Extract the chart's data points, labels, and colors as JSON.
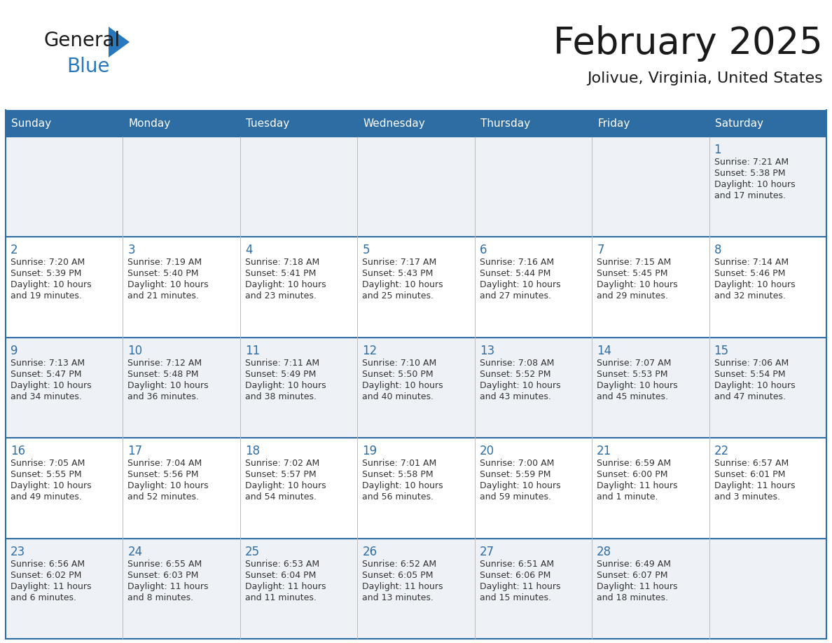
{
  "title": "February 2025",
  "subtitle": "Jolivue, Virginia, United States",
  "header_bg": "#2e6da4",
  "header_text_color": "#ffffff",
  "day_names": [
    "Sunday",
    "Monday",
    "Tuesday",
    "Wednesday",
    "Thursday",
    "Friday",
    "Saturday"
  ],
  "row_bg_odd": "#eef2f7",
  "row_bg_even": "#ffffff",
  "title_color": "#1a1a1a",
  "subtitle_color": "#1a1a1a",
  "cell_text_color": "#333333",
  "day_num_color": "#2e6da4",
  "grid_color": "#2e6da4",
  "border_color": "#2e6da4",
  "logo_general_color": "#1a1a1a",
  "logo_blue_color": "#2878be",
  "weeks": [
    [
      {
        "day": null,
        "info": ""
      },
      {
        "day": null,
        "info": ""
      },
      {
        "day": null,
        "info": ""
      },
      {
        "day": null,
        "info": ""
      },
      {
        "day": null,
        "info": ""
      },
      {
        "day": null,
        "info": ""
      },
      {
        "day": 1,
        "info": "Sunrise: 7:21 AM\nSunset: 5:38 PM\nDaylight: 10 hours\nand 17 minutes."
      }
    ],
    [
      {
        "day": 2,
        "info": "Sunrise: 7:20 AM\nSunset: 5:39 PM\nDaylight: 10 hours\nand 19 minutes."
      },
      {
        "day": 3,
        "info": "Sunrise: 7:19 AM\nSunset: 5:40 PM\nDaylight: 10 hours\nand 21 minutes."
      },
      {
        "day": 4,
        "info": "Sunrise: 7:18 AM\nSunset: 5:41 PM\nDaylight: 10 hours\nand 23 minutes."
      },
      {
        "day": 5,
        "info": "Sunrise: 7:17 AM\nSunset: 5:43 PM\nDaylight: 10 hours\nand 25 minutes."
      },
      {
        "day": 6,
        "info": "Sunrise: 7:16 AM\nSunset: 5:44 PM\nDaylight: 10 hours\nand 27 minutes."
      },
      {
        "day": 7,
        "info": "Sunrise: 7:15 AM\nSunset: 5:45 PM\nDaylight: 10 hours\nand 29 minutes."
      },
      {
        "day": 8,
        "info": "Sunrise: 7:14 AM\nSunset: 5:46 PM\nDaylight: 10 hours\nand 32 minutes."
      }
    ],
    [
      {
        "day": 9,
        "info": "Sunrise: 7:13 AM\nSunset: 5:47 PM\nDaylight: 10 hours\nand 34 minutes."
      },
      {
        "day": 10,
        "info": "Sunrise: 7:12 AM\nSunset: 5:48 PM\nDaylight: 10 hours\nand 36 minutes."
      },
      {
        "day": 11,
        "info": "Sunrise: 7:11 AM\nSunset: 5:49 PM\nDaylight: 10 hours\nand 38 minutes."
      },
      {
        "day": 12,
        "info": "Sunrise: 7:10 AM\nSunset: 5:50 PM\nDaylight: 10 hours\nand 40 minutes."
      },
      {
        "day": 13,
        "info": "Sunrise: 7:08 AM\nSunset: 5:52 PM\nDaylight: 10 hours\nand 43 minutes."
      },
      {
        "day": 14,
        "info": "Sunrise: 7:07 AM\nSunset: 5:53 PM\nDaylight: 10 hours\nand 45 minutes."
      },
      {
        "day": 15,
        "info": "Sunrise: 7:06 AM\nSunset: 5:54 PM\nDaylight: 10 hours\nand 47 minutes."
      }
    ],
    [
      {
        "day": 16,
        "info": "Sunrise: 7:05 AM\nSunset: 5:55 PM\nDaylight: 10 hours\nand 49 minutes."
      },
      {
        "day": 17,
        "info": "Sunrise: 7:04 AM\nSunset: 5:56 PM\nDaylight: 10 hours\nand 52 minutes."
      },
      {
        "day": 18,
        "info": "Sunrise: 7:02 AM\nSunset: 5:57 PM\nDaylight: 10 hours\nand 54 minutes."
      },
      {
        "day": 19,
        "info": "Sunrise: 7:01 AM\nSunset: 5:58 PM\nDaylight: 10 hours\nand 56 minutes."
      },
      {
        "day": 20,
        "info": "Sunrise: 7:00 AM\nSunset: 5:59 PM\nDaylight: 10 hours\nand 59 minutes."
      },
      {
        "day": 21,
        "info": "Sunrise: 6:59 AM\nSunset: 6:00 PM\nDaylight: 11 hours\nand 1 minute."
      },
      {
        "day": 22,
        "info": "Sunrise: 6:57 AM\nSunset: 6:01 PM\nDaylight: 11 hours\nand 3 minutes."
      }
    ],
    [
      {
        "day": 23,
        "info": "Sunrise: 6:56 AM\nSunset: 6:02 PM\nDaylight: 11 hours\nand 6 minutes."
      },
      {
        "day": 24,
        "info": "Sunrise: 6:55 AM\nSunset: 6:03 PM\nDaylight: 11 hours\nand 8 minutes."
      },
      {
        "day": 25,
        "info": "Sunrise: 6:53 AM\nSunset: 6:04 PM\nDaylight: 11 hours\nand 11 minutes."
      },
      {
        "day": 26,
        "info": "Sunrise: 6:52 AM\nSunset: 6:05 PM\nDaylight: 11 hours\nand 13 minutes."
      },
      {
        "day": 27,
        "info": "Sunrise: 6:51 AM\nSunset: 6:06 PM\nDaylight: 11 hours\nand 15 minutes."
      },
      {
        "day": 28,
        "info": "Sunrise: 6:49 AM\nSunset: 6:07 PM\nDaylight: 11 hours\nand 18 minutes."
      },
      {
        "day": null,
        "info": ""
      }
    ]
  ]
}
